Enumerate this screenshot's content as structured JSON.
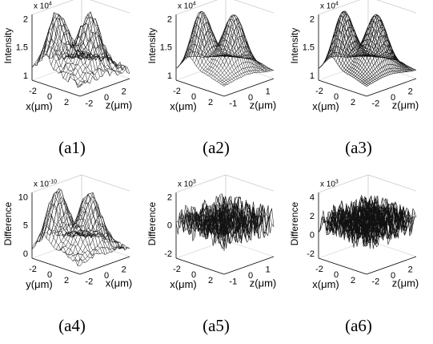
{
  "figure": {
    "panels": [
      {
        "id": "a1",
        "caption": "(a1)",
        "zlabel": "Intensity",
        "exponent": "x 10",
        "exponent_power": "4",
        "zticks": [
          "2",
          "1.5",
          "1"
        ],
        "xticks": [
          "2",
          "0",
          "-2"
        ],
        "yticks": [
          "-2",
          "0",
          "2"
        ],
        "xlabel": "x(μm)",
        "ylabel": "z(μm)",
        "surface": "two-peak",
        "roughness": 0.55,
        "density": "medium"
      },
      {
        "id": "a2",
        "caption": "(a2)",
        "zlabel": "Intensity",
        "exponent": "x 10",
        "exponent_power": "4",
        "zticks": [
          "2",
          "1.5",
          "1"
        ],
        "xticks": [
          "2",
          "0",
          "-2"
        ],
        "yticks": [
          "-1",
          "0",
          "1"
        ],
        "xlabel": "x(μm)",
        "ylabel": "z(μm)",
        "surface": "two-peak",
        "roughness": 0.05,
        "density": "fine"
      },
      {
        "id": "a3",
        "caption": "(a3)",
        "zlabel": "Intensity",
        "exponent": "x 10",
        "exponent_power": "4",
        "zticks": [
          "2",
          "1.5",
          "1"
        ],
        "xticks": [
          "2",
          "0",
          "-2"
        ],
        "yticks": [
          "-2",
          "0",
          "2"
        ],
        "xlabel": "x(μm)",
        "ylabel": "z(μm)",
        "surface": "two-peak",
        "roughness": 0.02,
        "density": "dense"
      },
      {
        "id": "a4",
        "caption": "(a4)",
        "zlabel": "Difference",
        "exponent": "x 10",
        "exponent_power": "-10",
        "zticks": [
          "10",
          "5",
          "0"
        ],
        "xticks": [
          "2",
          "0",
          "-2"
        ],
        "yticks": [
          "-2",
          "0",
          "2"
        ],
        "xlabel": "y(μm)",
        "ylabel": "x(μm)",
        "surface": "two-peak",
        "roughness": 0.45,
        "density": "medium"
      },
      {
        "id": "a5",
        "caption": "(a5)",
        "zlabel": "Difference",
        "exponent": "x 10",
        "exponent_power": "3",
        "zticks": [
          "2",
          "0",
          "-2"
        ],
        "xticks": [
          "2",
          "0",
          "-2"
        ],
        "yticks": [
          "-1",
          "0",
          "1"
        ],
        "xlabel": "x(μm)",
        "ylabel": "z(μm)",
        "surface": "noise",
        "roughness": 1.0,
        "density": "fine"
      },
      {
        "id": "a6",
        "caption": "(a6)",
        "zlabel": "Difference",
        "exponent": "x 10",
        "exponent_power": "3",
        "zticks": [
          "4",
          "2",
          "0",
          "-2"
        ],
        "xticks": [
          "2",
          "0",
          "-2"
        ],
        "yticks": [
          "-2",
          "0",
          "2"
        ],
        "xlabel": "x(μm)",
        "ylabel": "z(μm)",
        "surface": "noise",
        "roughness": 1.0,
        "density": "dense"
      }
    ]
  }
}
